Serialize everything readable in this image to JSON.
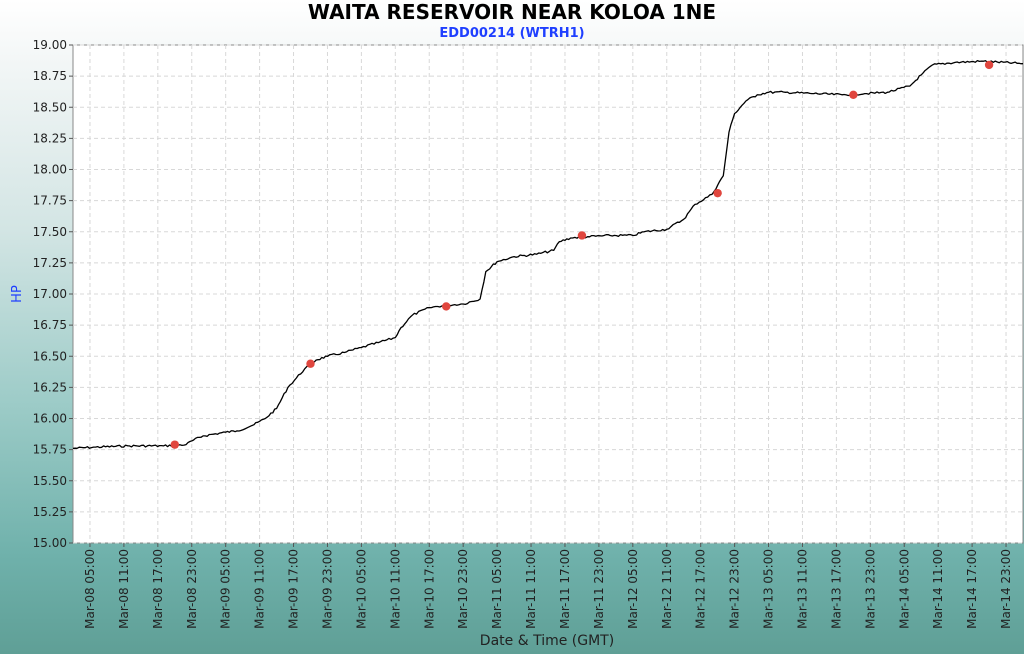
{
  "chart_data": {
    "type": "line",
    "title": "WAITA RESERVOIR NEAR KOLOA 1NE",
    "subtitle": "EDD00214 (WTRH1)",
    "xlabel": "Date & Time (GMT)",
    "ylabel": "HP",
    "ylim": [
      15.0,
      19.0
    ],
    "y_ticks": [
      "15.00",
      "15.25",
      "15.50",
      "15.75",
      "16.00",
      "16.25",
      "16.50",
      "16.75",
      "17.00",
      "17.25",
      "17.50",
      "17.75",
      "18.00",
      "18.25",
      "18.50",
      "18.75",
      "19.00"
    ],
    "xlim": [
      "Mar-08 02:00",
      "Mar-15 02:00"
    ],
    "x_ticks": [
      "Mar-08 05:00",
      "Mar-08 11:00",
      "Mar-08 17:00",
      "Mar-08 23:00",
      "Mar-09 05:00",
      "Mar-09 11:00",
      "Mar-09 17:00",
      "Mar-09 23:00",
      "Mar-10 05:00",
      "Mar-10 11:00",
      "Mar-10 17:00",
      "Mar-10 23:00",
      "Mar-11 05:00",
      "Mar-11 11:00",
      "Mar-11 17:00",
      "Mar-11 23:00",
      "Mar-12 05:00",
      "Mar-12 11:00",
      "Mar-12 17:00",
      "Mar-12 23:00",
      "Mar-13 05:00",
      "Mar-13 11:00",
      "Mar-13 17:00",
      "Mar-13 23:00",
      "Mar-14 05:00",
      "Mar-14 11:00",
      "Mar-14 17:00",
      "Mar-14 23:00"
    ],
    "grid": true,
    "series": [
      {
        "color": "#000000",
        "x": [
          "Mar-08 02:00",
          "Mar-08 06:00",
          "Mar-08 12:00",
          "Mar-08 18:00",
          "Mar-08 22:00",
          "Mar-08 23:00",
          "Mar-09 01:00",
          "Mar-09 05:00",
          "Mar-09 07:00",
          "Mar-09 10:00",
          "Mar-09 12:00",
          "Mar-09 14:00",
          "Mar-09 16:00",
          "Mar-09 19:00",
          "Mar-09 21:00",
          "Mar-09 23:00",
          "Mar-10 02:00",
          "Mar-10 05:00",
          "Mar-10 08:00",
          "Mar-10 11:00",
          "Mar-10 12:00",
          "Mar-10 14:00",
          "Mar-10 17:00",
          "Mar-10 20:00",
          "Mar-10 23:00",
          "Mar-11 02:00",
          "Mar-11 03:00",
          "Mar-11 05:00",
          "Mar-11 08:00",
          "Mar-11 12:00",
          "Mar-11 15:00",
          "Mar-11 16:00",
          "Mar-11 18:00",
          "Mar-11 21:00",
          "Mar-12 01:00",
          "Mar-12 05:00",
          "Mar-12 07:00",
          "Mar-12 11:00",
          "Mar-12 14:00",
          "Mar-12 16:00",
          "Mar-12 19:00",
          "Mar-12 21:00",
          "Mar-12 22:00",
          "Mar-12 23:00",
          "Mar-13 01:00",
          "Mar-13 03:00",
          "Mar-13 05:00",
          "Mar-13 08:00",
          "Mar-13 13:00",
          "Mar-13 18:00",
          "Mar-13 22:00",
          "Mar-14 02:00",
          "Mar-14 06:00",
          "Mar-14 08:00",
          "Mar-14 10:00",
          "Mar-14 14:00",
          "Mar-14 19:00",
          "Mar-15 02:00"
        ],
        "y": [
          15.76,
          15.77,
          15.78,
          15.78,
          15.79,
          15.82,
          15.86,
          15.89,
          15.9,
          15.95,
          16.0,
          16.08,
          16.25,
          16.4,
          16.47,
          16.5,
          16.53,
          16.57,
          16.61,
          16.65,
          16.73,
          16.83,
          16.89,
          16.91,
          16.92,
          16.96,
          17.18,
          17.26,
          17.3,
          17.32,
          17.35,
          17.42,
          17.45,
          17.46,
          17.47,
          17.47,
          17.5,
          17.52,
          17.6,
          17.72,
          17.8,
          17.95,
          18.3,
          18.45,
          18.55,
          18.6,
          18.62,
          18.62,
          18.61,
          18.6,
          18.61,
          18.62,
          18.67,
          18.76,
          18.84,
          18.86,
          18.87,
          18.85
        ]
      }
    ],
    "markers": {
      "color": "#e0463e",
      "x": [
        "Mar-08 20:00",
        "Mar-09 20:00",
        "Mar-10 20:00",
        "Mar-11 20:00",
        "Mar-12 20:00",
        "Mar-13 20:00",
        "Mar-14 20:00"
      ],
      "y": [
        15.79,
        16.44,
        16.9,
        17.47,
        17.81,
        18.6,
        18.84
      ]
    }
  }
}
